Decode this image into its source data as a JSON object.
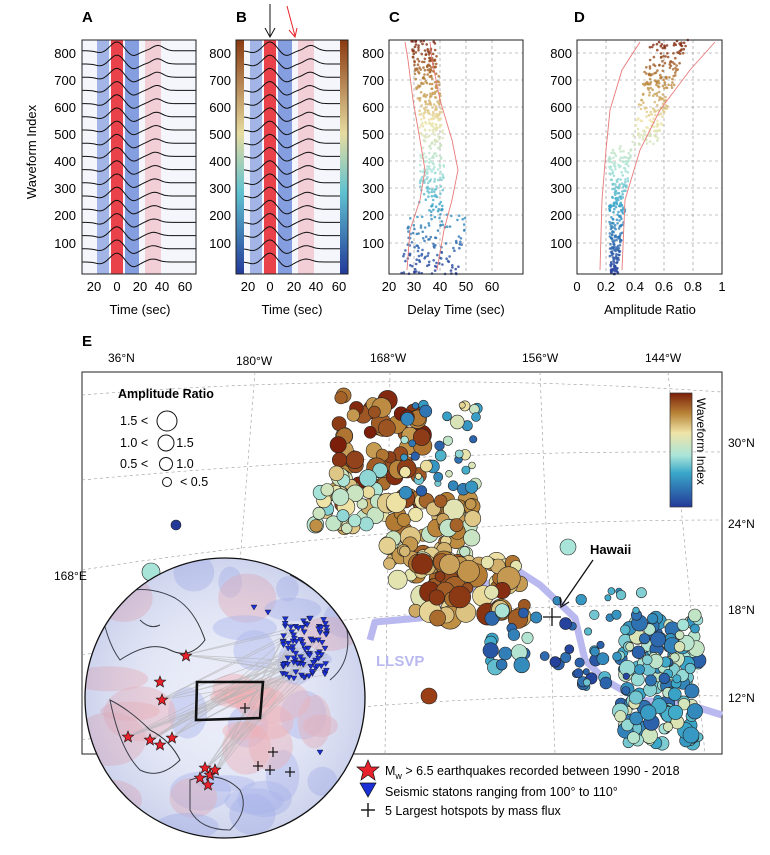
{
  "panel_labels": {
    "a": "A",
    "b": "B",
    "c": "C",
    "d": "D",
    "e": "E"
  },
  "y_axis": {
    "label": "Waveform Index",
    "ticks": [
      "800",
      "700",
      "600",
      "500",
      "400",
      "300",
      "200",
      "100"
    ]
  },
  "panel_a": {
    "xlabel": "Time (sec)",
    "xticks": [
      "20",
      "0",
      "20",
      "40",
      "60"
    ]
  },
  "panel_b": {
    "xlabel": "Time (sec)",
    "xticks": [
      "20",
      "0",
      "20",
      "40",
      "60"
    ]
  },
  "panel_c": {
    "xlabel": "Delay Time (sec)",
    "xticks": [
      "20",
      "30",
      "40",
      "50",
      "60"
    ]
  },
  "panel_d": {
    "xlabel": "Amplitude Ratio",
    "xticks": [
      "0",
      "0.2",
      "0.4",
      "0.6",
      "0.8",
      "1"
    ]
  },
  "map": {
    "lon_labels": [
      "36°N",
      "180°W",
      "168°W",
      "156°W",
      "144°W"
    ],
    "lat_labels": [
      "30°N",
      "24°N",
      "18°N",
      "12°N"
    ],
    "west_label": "168°E",
    "hawaii_label": "Hawaii",
    "llsvp_label": "LLSVP",
    "colorbar_label": "Waveform Index",
    "amp_legend": {
      "title": "Amplitude Ratio",
      "rows": [
        "1.5 <",
        "1.0 <     < 1.5",
        "0.5 <     < 1.0",
        "< 0.5"
      ]
    }
  },
  "legend": {
    "earthquakes_prefix": "M",
    "earthquakes_sub": "w",
    "earthquakes_text": " > 6.5 earthquakes recorded between 1990 - 2018",
    "stations": "Seismic statons ranging from 100° to 110°",
    "hotspots": "5 Largest hotspots by mass flux"
  },
  "colors": {
    "waveform_red": "#e8222a",
    "waveform_blue": "#2a56c6",
    "colorbar_top": "#8b2a0f",
    "colorbar_mid": "#efe4a8",
    "colorbar_low": "#7fd1cc",
    "colorbar_bottom": "#233a99",
    "llsvp": "#b9b9f0",
    "star": "#e8222a",
    "station": "#1a2fd6"
  }
}
